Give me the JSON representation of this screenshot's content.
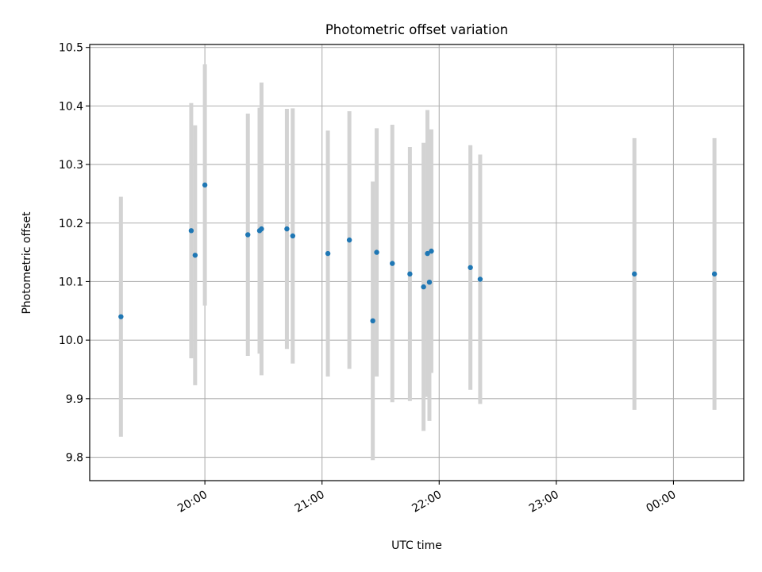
{
  "chart_data": {
    "type": "scatter",
    "title": "Photometric offset variation",
    "xlabel": "UTC time",
    "ylabel": "Photometric offset",
    "grid": true,
    "x_tick_labels": [
      "20:00",
      "21:00",
      "22:00",
      "23:00",
      "00:00"
    ],
    "y_tick_labels": [
      "9.8",
      "9.9",
      "10.0",
      "10.1",
      "10.2",
      "10.3",
      "10.4",
      "10.5"
    ],
    "xlim": [
      "19:01",
      "00:36"
    ],
    "ylim": [
      9.76,
      10.505
    ],
    "colors": {
      "point": "#1f77b4",
      "errorbar": "#d3d3d3",
      "grid": "#b0b0b0"
    },
    "points": [
      {
        "x": "19:17",
        "y": 10.04,
        "err": 0.205
      },
      {
        "x": "19:53",
        "y": 10.187,
        "err": 0.218
      },
      {
        "x": "19:55",
        "y": 10.145,
        "err": 0.222
      },
      {
        "x": "20:00",
        "y": 10.265,
        "err": 0.206
      },
      {
        "x": "20:22",
        "y": 10.18,
        "err": 0.207
      },
      {
        "x": "20:28",
        "y": 10.187,
        "err": 0.21
      },
      {
        "x": "20:29",
        "y": 10.19,
        "err": 0.25
      },
      {
        "x": "20:42",
        "y": 10.19,
        "err": 0.205
      },
      {
        "x": "20:45",
        "y": 10.178,
        "err": 0.218
      },
      {
        "x": "21:03",
        "y": 10.148,
        "err": 0.21
      },
      {
        "x": "21:14",
        "y": 10.171,
        "err": 0.22
      },
      {
        "x": "21:26",
        "y": 10.033,
        "err": 0.238
      },
      {
        "x": "21:28",
        "y": 10.15,
        "err": 0.212
      },
      {
        "x": "21:36",
        "y": 10.131,
        "err": 0.237
      },
      {
        "x": "21:45",
        "y": 10.113,
        "err": 0.217
      },
      {
        "x": "21:52",
        "y": 10.091,
        "err": 0.246
      },
      {
        "x": "21:54",
        "y": 10.148,
        "err": 0.245
      },
      {
        "x": "21:55",
        "y": 10.099,
        "err": 0.237
      },
      {
        "x": "21:56",
        "y": 10.152,
        "err": 0.208
      },
      {
        "x": "22:16",
        "y": 10.124,
        "err": 0.209
      },
      {
        "x": "22:21",
        "y": 10.104,
        "err": 0.213
      },
      {
        "x": "23:40",
        "y": 10.113,
        "err": 0.232
      },
      {
        "x": "00:21",
        "y": 10.113,
        "err": 0.232
      }
    ]
  }
}
